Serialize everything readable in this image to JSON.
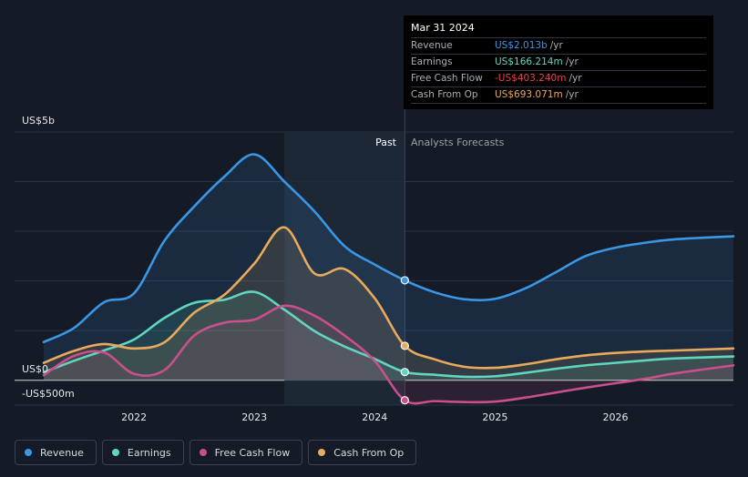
{
  "chart_data": {
    "type": "line",
    "y_unit_labels": {
      "top": "US$5b",
      "zero": "US$0",
      "bottom": "-US$500m"
    },
    "ylim": [
      -500,
      5000
    ],
    "xlim": [
      2021.25,
      2026.98
    ],
    "x_ticks": [
      {
        "value": 2022,
        "label": "2022"
      },
      {
        "value": 2023,
        "label": "2023"
      },
      {
        "value": 2024,
        "label": "2024"
      },
      {
        "value": 2025,
        "label": "2025"
      },
      {
        "value": 2026,
        "label": "2026"
      }
    ],
    "past_label": "Past",
    "forecast_label": "Analysts Forecasts",
    "past_region_start": 2023.25,
    "divider_x": 2024.25,
    "series": [
      {
        "name": "Revenue",
        "color": "#3a97e6",
        "fill": true,
        "points": [
          [
            2021.25,
            770
          ],
          [
            2021.5,
            1050
          ],
          [
            2021.75,
            1570
          ],
          [
            2022.0,
            1750
          ],
          [
            2022.25,
            2800
          ],
          [
            2022.5,
            3500
          ],
          [
            2022.75,
            4100
          ],
          [
            2023.0,
            4550
          ],
          [
            2023.25,
            4000
          ],
          [
            2023.5,
            3400
          ],
          [
            2023.75,
            2700
          ],
          [
            2024.0,
            2330
          ],
          [
            2024.25,
            2013
          ],
          [
            2024.5,
            1770
          ],
          [
            2024.75,
            1630
          ],
          [
            2025.0,
            1640
          ],
          [
            2025.25,
            1850
          ],
          [
            2025.5,
            2170
          ],
          [
            2025.75,
            2500
          ],
          [
            2026.0,
            2670
          ],
          [
            2026.25,
            2770
          ],
          [
            2026.5,
            2840
          ],
          [
            2026.98,
            2900
          ]
        ]
      },
      {
        "name": "Earnings",
        "color": "#5ed6c0",
        "fill": true,
        "points": [
          [
            2021.25,
            160
          ],
          [
            2021.5,
            390
          ],
          [
            2021.75,
            600
          ],
          [
            2022.0,
            820
          ],
          [
            2022.25,
            1250
          ],
          [
            2022.5,
            1560
          ],
          [
            2022.75,
            1620
          ],
          [
            2023.0,
            1780
          ],
          [
            2023.25,
            1420
          ],
          [
            2023.5,
            990
          ],
          [
            2023.75,
            680
          ],
          [
            2024.0,
            430
          ],
          [
            2024.25,
            166
          ],
          [
            2024.5,
            110
          ],
          [
            2024.75,
            70
          ],
          [
            2025.0,
            80
          ],
          [
            2025.25,
            150
          ],
          [
            2025.5,
            230
          ],
          [
            2025.75,
            300
          ],
          [
            2026.0,
            350
          ],
          [
            2026.25,
            400
          ],
          [
            2026.5,
            440
          ],
          [
            2026.98,
            480
          ]
        ]
      },
      {
        "name": "Free Cash Flow",
        "color": "#c9508c",
        "fill": true,
        "points": [
          [
            2021.25,
            100
          ],
          [
            2021.5,
            490
          ],
          [
            2021.75,
            560
          ],
          [
            2022.0,
            130
          ],
          [
            2022.25,
            200
          ],
          [
            2022.5,
            900
          ],
          [
            2022.75,
            1160
          ],
          [
            2023.0,
            1220
          ],
          [
            2023.25,
            1500
          ],
          [
            2023.5,
            1300
          ],
          [
            2023.75,
            900
          ],
          [
            2024.0,
            390
          ],
          [
            2024.25,
            -403
          ],
          [
            2024.5,
            -420
          ],
          [
            2024.75,
            -440
          ],
          [
            2025.0,
            -430
          ],
          [
            2025.25,
            -350
          ],
          [
            2025.5,
            -250
          ],
          [
            2025.75,
            -150
          ],
          [
            2026.0,
            -60
          ],
          [
            2026.25,
            30
          ],
          [
            2026.5,
            140
          ],
          [
            2026.98,
            300
          ]
        ]
      },
      {
        "name": "Cash From Op",
        "color": "#e8aa5c",
        "fill": true,
        "points": [
          [
            2021.25,
            350
          ],
          [
            2021.5,
            590
          ],
          [
            2021.75,
            730
          ],
          [
            2022.0,
            640
          ],
          [
            2022.25,
            760
          ],
          [
            2022.5,
            1360
          ],
          [
            2022.75,
            1720
          ],
          [
            2023.0,
            2350
          ],
          [
            2023.25,
            3080
          ],
          [
            2023.5,
            2150
          ],
          [
            2023.75,
            2240
          ],
          [
            2024.0,
            1650
          ],
          [
            2024.25,
            693
          ],
          [
            2024.5,
            420
          ],
          [
            2024.75,
            270
          ],
          [
            2025.0,
            250
          ],
          [
            2025.25,
            320
          ],
          [
            2025.5,
            420
          ],
          [
            2025.75,
            500
          ],
          [
            2026.0,
            550
          ],
          [
            2026.25,
            580
          ],
          [
            2026.5,
            600
          ],
          [
            2026.98,
            640
          ]
        ]
      }
    ]
  },
  "tooltip": {
    "date": "Mar 31 2024",
    "rows": [
      {
        "label": "Revenue",
        "value": "US$2.013b",
        "unit": "/yr",
        "color": "#3a97e6"
      },
      {
        "label": "Earnings",
        "value": "US$166.214m",
        "unit": "/yr",
        "color": "#5ed6c0"
      },
      {
        "label": "Free Cash Flow",
        "value": "-US$403.240m",
        "unit": "/yr",
        "color": "#e8414b"
      },
      {
        "label": "Cash From Op",
        "value": "US$693.071m",
        "unit": "/yr",
        "color": "#e8aa5c"
      }
    ]
  },
  "legend": [
    {
      "label": "Revenue",
      "color": "#3a97e6"
    },
    {
      "label": "Earnings",
      "color": "#5ed6c0"
    },
    {
      "label": "Free Cash Flow",
      "color": "#c9508c"
    },
    {
      "label": "Cash From Op",
      "color": "#e8aa5c"
    }
  ]
}
